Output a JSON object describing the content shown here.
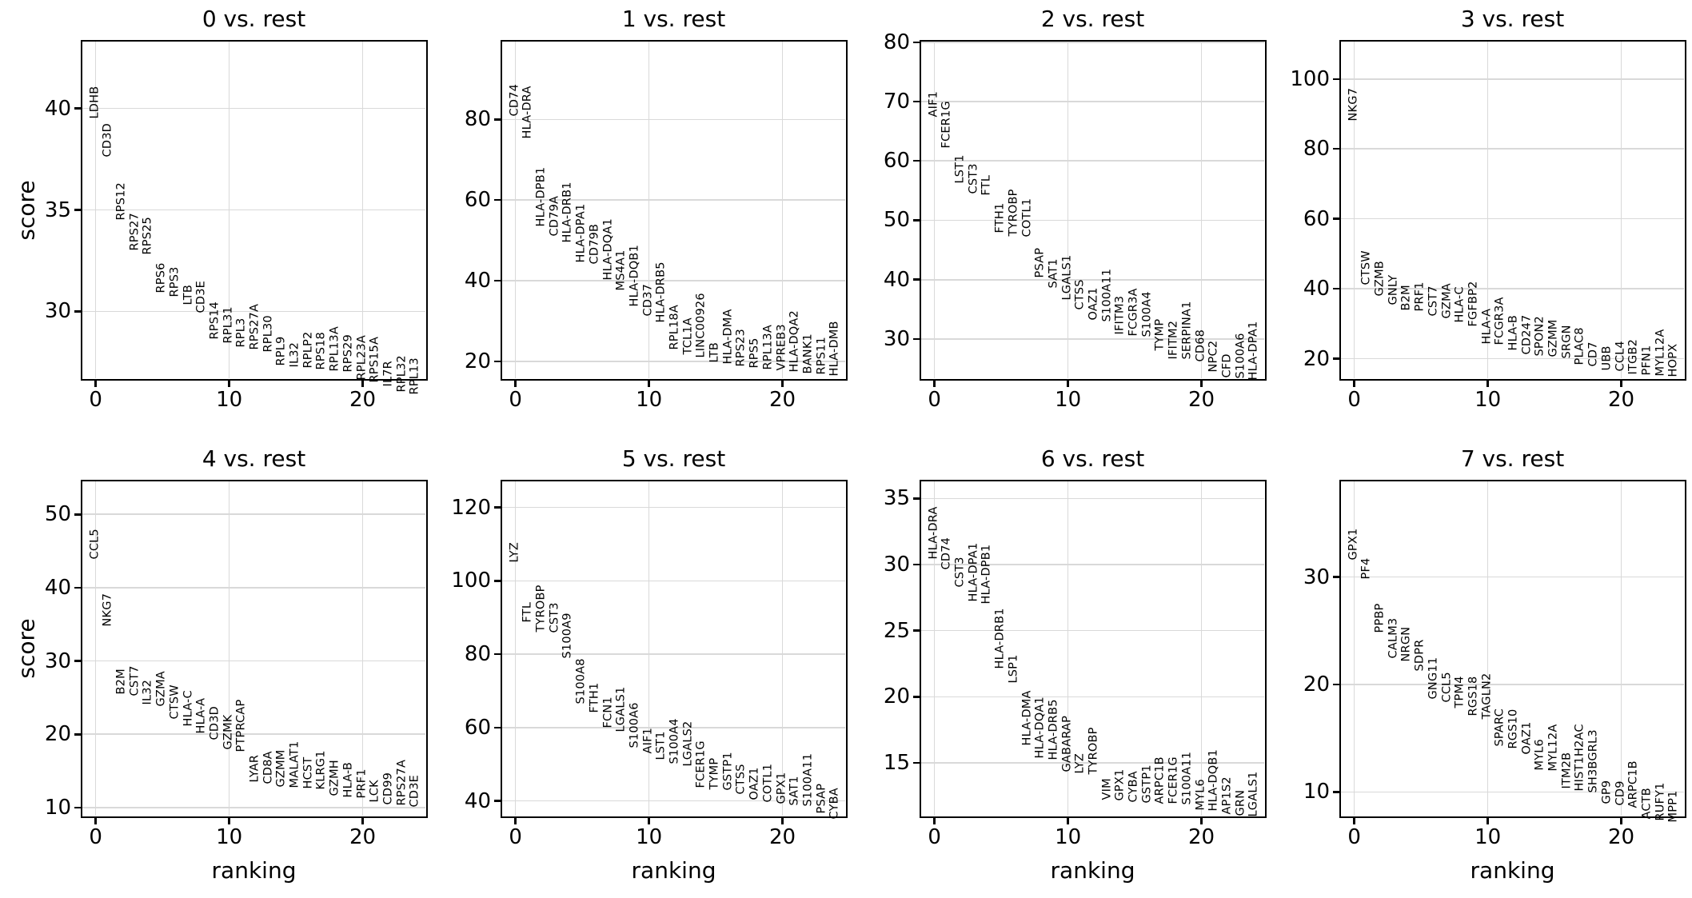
{
  "figure": {
    "background": "#ffffff",
    "text_color": "#000000",
    "grid_color": "#d9d9d9",
    "spine_color": "#000000",
    "shared_ylabel": "score",
    "shared_xlabel": "ranking"
  },
  "chart_data": [
    {
      "type": "scatter",
      "title": "0 vs. rest",
      "ylabel": "score",
      "xlabel": "",
      "xticks": [
        0,
        10,
        20
      ],
      "xlim": [
        -1,
        24.7
      ],
      "yticks": [
        30,
        35,
        40
      ],
      "ylim": [
        26.7,
        43.3
      ],
      "grid": true,
      "genes": [
        "LDHB",
        "CD3D",
        "RPS12",
        "RPS27",
        "RPS25",
        "RPS6",
        "RPS3",
        "LTB",
        "CD3E",
        "RPS14",
        "RPL31",
        "RPL3",
        "RPS27A",
        "RPL30",
        "RPL9",
        "IL32",
        "RPLP2",
        "RPS18",
        "RPL13A",
        "RPS29",
        "RPL23A",
        "RPS15A",
        "IL7R",
        "RPL32",
        "RPL13"
      ],
      "scores": [
        39.5,
        37.6,
        34.5,
        33.0,
        32.8,
        30.9,
        30.7,
        30.3,
        29.9,
        28.6,
        28.4,
        28.2,
        28.1,
        28.0,
        27.3,
        27.25,
        27.2,
        27.1,
        27.05,
        27.0,
        26.6,
        26.5,
        26.3,
        26.0,
        25.9
      ]
    },
    {
      "type": "scatter",
      "title": "1 vs. rest",
      "ylabel": "",
      "xlabel": "",
      "xticks": [
        0,
        10,
        20
      ],
      "xlim": [
        -1,
        24.7
      ],
      "yticks": [
        20,
        40,
        60,
        80
      ],
      "ylim": [
        15.8,
        99.3
      ],
      "grid": true,
      "genes": [
        "CD74",
        "HLA-DRA",
        "HLA-DPB1",
        "CD79A",
        "HLA-DRB1",
        "HLA-DPA1",
        "CD79B",
        "HLA-DQA1",
        "MS4A1",
        "HLA-DQB1",
        "CD37",
        "HLA-DRB5",
        "RPL18A",
        "TCL1A",
        "LINC00926",
        "LTB",
        "HLA-DMA",
        "RPS23",
        "RPS5",
        "RPL13A",
        "VPREB3",
        "HLA-DQA2",
        "BANK1",
        "RPS11",
        "HLA-DMB"
      ],
      "scores": [
        80.7,
        75.2,
        53.4,
        51.1,
        49.4,
        44.4,
        44.1,
        40.1,
        37.5,
        33.5,
        31.2,
        29.5,
        22.9,
        21.6,
        20.9,
        19.6,
        19.3,
        18.6,
        18.3,
        17.9,
        17.6,
        17.3,
        16.9,
        16.6,
        16.3
      ]
    },
    {
      "type": "scatter",
      "title": "2 vs. rest",
      "ylabel": "",
      "xlabel": "",
      "xticks": [
        0,
        10,
        20
      ],
      "xlim": [
        -1,
        24.7
      ],
      "yticks": [
        30,
        40,
        50,
        60,
        70,
        80
      ],
      "ylim": [
        23.4,
        80.1
      ],
      "grid": true,
      "genes": [
        "AIF1",
        "FCER1G",
        "LST1",
        "CST3",
        "FTL",
        "FTH1",
        "TYROBP",
        "COTL1",
        "PSAP",
        "SAT1",
        "LGALS1",
        "CTSS",
        "OAZ1",
        "S100A11",
        "IFITM3",
        "FCGR3A",
        "S100A4",
        "TYMP",
        "IFITM2",
        "SERPINA1",
        "CD68",
        "NPC2",
        "CFD",
        "S100A6",
        "HLA-DPA1"
      ],
      "scores": [
        67.4,
        62.1,
        56.2,
        54.4,
        54.2,
        47.9,
        47.3,
        47.2,
        40.3,
        38.5,
        36.5,
        34.9,
        33.1,
        32.9,
        30.7,
        30.5,
        30.4,
        28.0,
        26.6,
        26.5,
        26.2,
        24.4,
        23.5,
        23.4,
        23.1
      ]
    },
    {
      "type": "scatter",
      "title": "3 vs. rest",
      "ylabel": "",
      "xlabel": "",
      "xticks": [
        0,
        10,
        20
      ],
      "xlim": [
        -1,
        24.7
      ],
      "yticks": [
        20,
        40,
        60,
        80,
        100
      ],
      "ylim": [
        14.4,
        110.7
      ],
      "grid": true,
      "genes": [
        "NKG7",
        "CTSW",
        "GZMB",
        "GNLY",
        "B2M",
        "PRF1",
        "CST7",
        "GZMA",
        "HLA-C",
        "FGFBP2",
        "HLA-A",
        "FCGR3A",
        "HLA-B",
        "CD247",
        "SPON2",
        "GZMM",
        "SRGN",
        "PLAC8",
        "CD7",
        "UBB",
        "CCL4",
        "ITGB2",
        "PFN1",
        "MYL12A",
        "HOPX"
      ],
      "scores": [
        87.9,
        41.0,
        37.9,
        35.3,
        33.7,
        33.4,
        32.2,
        31.5,
        30.3,
        29.2,
        24.2,
        23.8,
        22.3,
        21.1,
        20.8,
        20.4,
        20.0,
        18.1,
        17.7,
        16.6,
        16.3,
        15.4,
        15.2,
        15.0,
        14.7
      ]
    },
    {
      "type": "scatter",
      "title": "4 vs. rest",
      "ylabel": "score",
      "xlabel": "ranking",
      "xticks": [
        0,
        10,
        20
      ],
      "xlim": [
        -1,
        24.7
      ],
      "yticks": [
        10,
        20,
        30,
        40,
        50
      ],
      "ylim": [
        8.9,
        54.5
      ],
      "grid": true,
      "genes": [
        "CCL5",
        "NKG7",
        "B2M",
        "CST7",
        "IL32",
        "GZMA",
        "CTSW",
        "HLA-C",
        "HLA-A",
        "CD3D",
        "GZMK",
        "PTPRCAP",
        "LYAR",
        "CD8A",
        "GZMM",
        "MALAT1",
        "HCST",
        "KLRG1",
        "GZMH",
        "HLA-B",
        "PRF1",
        "LCK",
        "CD99",
        "RPS27A",
        "CD3E"
      ],
      "scores": [
        43.9,
        34.7,
        25.4,
        25.2,
        24.0,
        23.8,
        22.0,
        21.1,
        20.1,
        19.2,
        17.9,
        17.6,
        13.4,
        13.2,
        12.8,
        12.7,
        12.6,
        12.5,
        11.6,
        11.4,
        11.2,
        10.7,
        10.4,
        10.3,
        10.0
      ]
    },
    {
      "type": "scatter",
      "title": "5 vs. rest",
      "ylabel": "",
      "xlabel": "ranking",
      "xticks": [
        0,
        10,
        20
      ],
      "xlim": [
        -1,
        24.7
      ],
      "yticks": [
        40,
        60,
        80,
        100,
        120
      ],
      "ylim": [
        36.0,
        127.1
      ],
      "grid": true,
      "genes": [
        "LYZ",
        "FTL",
        "TYROBP",
        "CST3",
        "S100A9",
        "S100A8",
        "FTH1",
        "FCN1",
        "LGALS1",
        "S100A6",
        "AIF1",
        "LST1",
        "S100A4",
        "LGALS2",
        "FCER1G",
        "TYMP",
        "GSTP1",
        "CTSS",
        "OAZ1",
        "COTL1",
        "GPX1",
        "SAT1",
        "S100A11",
        "PSAP",
        "CYBA"
      ],
      "scores": [
        104.9,
        88.6,
        86.0,
        85.9,
        78.8,
        66.4,
        63.9,
        59.9,
        58.8,
        54.4,
        52.9,
        51.1,
        50.0,
        49.3,
        43.5,
        43.1,
        42.8,
        41.7,
        40.2,
        39.5,
        39.1,
        38.8,
        38.4,
        36.6,
        35.1
      ]
    },
    {
      "type": "scatter",
      "title": "6 vs. rest",
      "ylabel": "",
      "xlabel": "ranking",
      "xticks": [
        0,
        10,
        20
      ],
      "xlim": [
        -1,
        24.7
      ],
      "yticks": [
        15,
        20,
        25,
        30,
        35
      ],
      "ylim": [
        11.0,
        36.3
      ],
      "grid": true,
      "genes": [
        "HLA-DRA",
        "CD74",
        "CST3",
        "HLA-DPA1",
        "HLA-DPB1",
        "HLA-DRB1",
        "LSP1",
        "HLA-DMA",
        "HLA-DQA1",
        "HLA-DRB5",
        "GABARAP",
        "LYZ",
        "TYROBP",
        "VIM",
        "GPX1",
        "CYBA",
        "GSTP1",
        "ARPC1B",
        "FCER1G",
        "S100A11",
        "MYL6",
        "HLA-DQB1",
        "AP1S2",
        "GRN",
        "LGALS1"
      ],
      "scores": [
        30.4,
        29.6,
        28.3,
        27.2,
        27.0,
        22.1,
        21.0,
        16.3,
        15.3,
        15.2,
        14.3,
        14.2,
        14.1,
        12.2,
        12.1,
        12.0,
        11.95,
        11.9,
        11.85,
        11.8,
        11.4,
        11.35,
        11.1,
        11.0,
        10.9
      ]
    },
    {
      "type": "scatter",
      "title": "7 vs. rest",
      "ylabel": "",
      "xlabel": "ranking",
      "xticks": [
        0,
        10,
        20
      ],
      "xlim": [
        -1,
        24.7
      ],
      "yticks": [
        10,
        20,
        30
      ],
      "ylim": [
        7.8,
        38.9
      ],
      "grid": true,
      "genes": [
        "GPX1",
        "PF4",
        "PPBP",
        "CALM3",
        "NRGN",
        "SDPR",
        "GNG11",
        "CCL5",
        "TPM4",
        "RGS18",
        "TAGLN2",
        "SPARC",
        "RGS10",
        "OAZ1",
        "MYL6",
        "MYL12A",
        "ITM2B",
        "HIST1H2AC",
        "SH3BGRL3",
        "GP9",
        "CD9",
        "ARPC1B",
        "ACTB",
        "RUFY1",
        "MPP1"
      ],
      "scores": [
        31.6,
        29.8,
        24.8,
        22.4,
        22.1,
        21.2,
        18.6,
        18.3,
        17.8,
        17.1,
        16.8,
        14.2,
        14.0,
        13.5,
        12.0,
        11.9,
        10.3,
        10.1,
        9.9,
        8.9,
        8.7,
        8.5,
        7.5,
        7.3,
        7.2
      ]
    }
  ]
}
